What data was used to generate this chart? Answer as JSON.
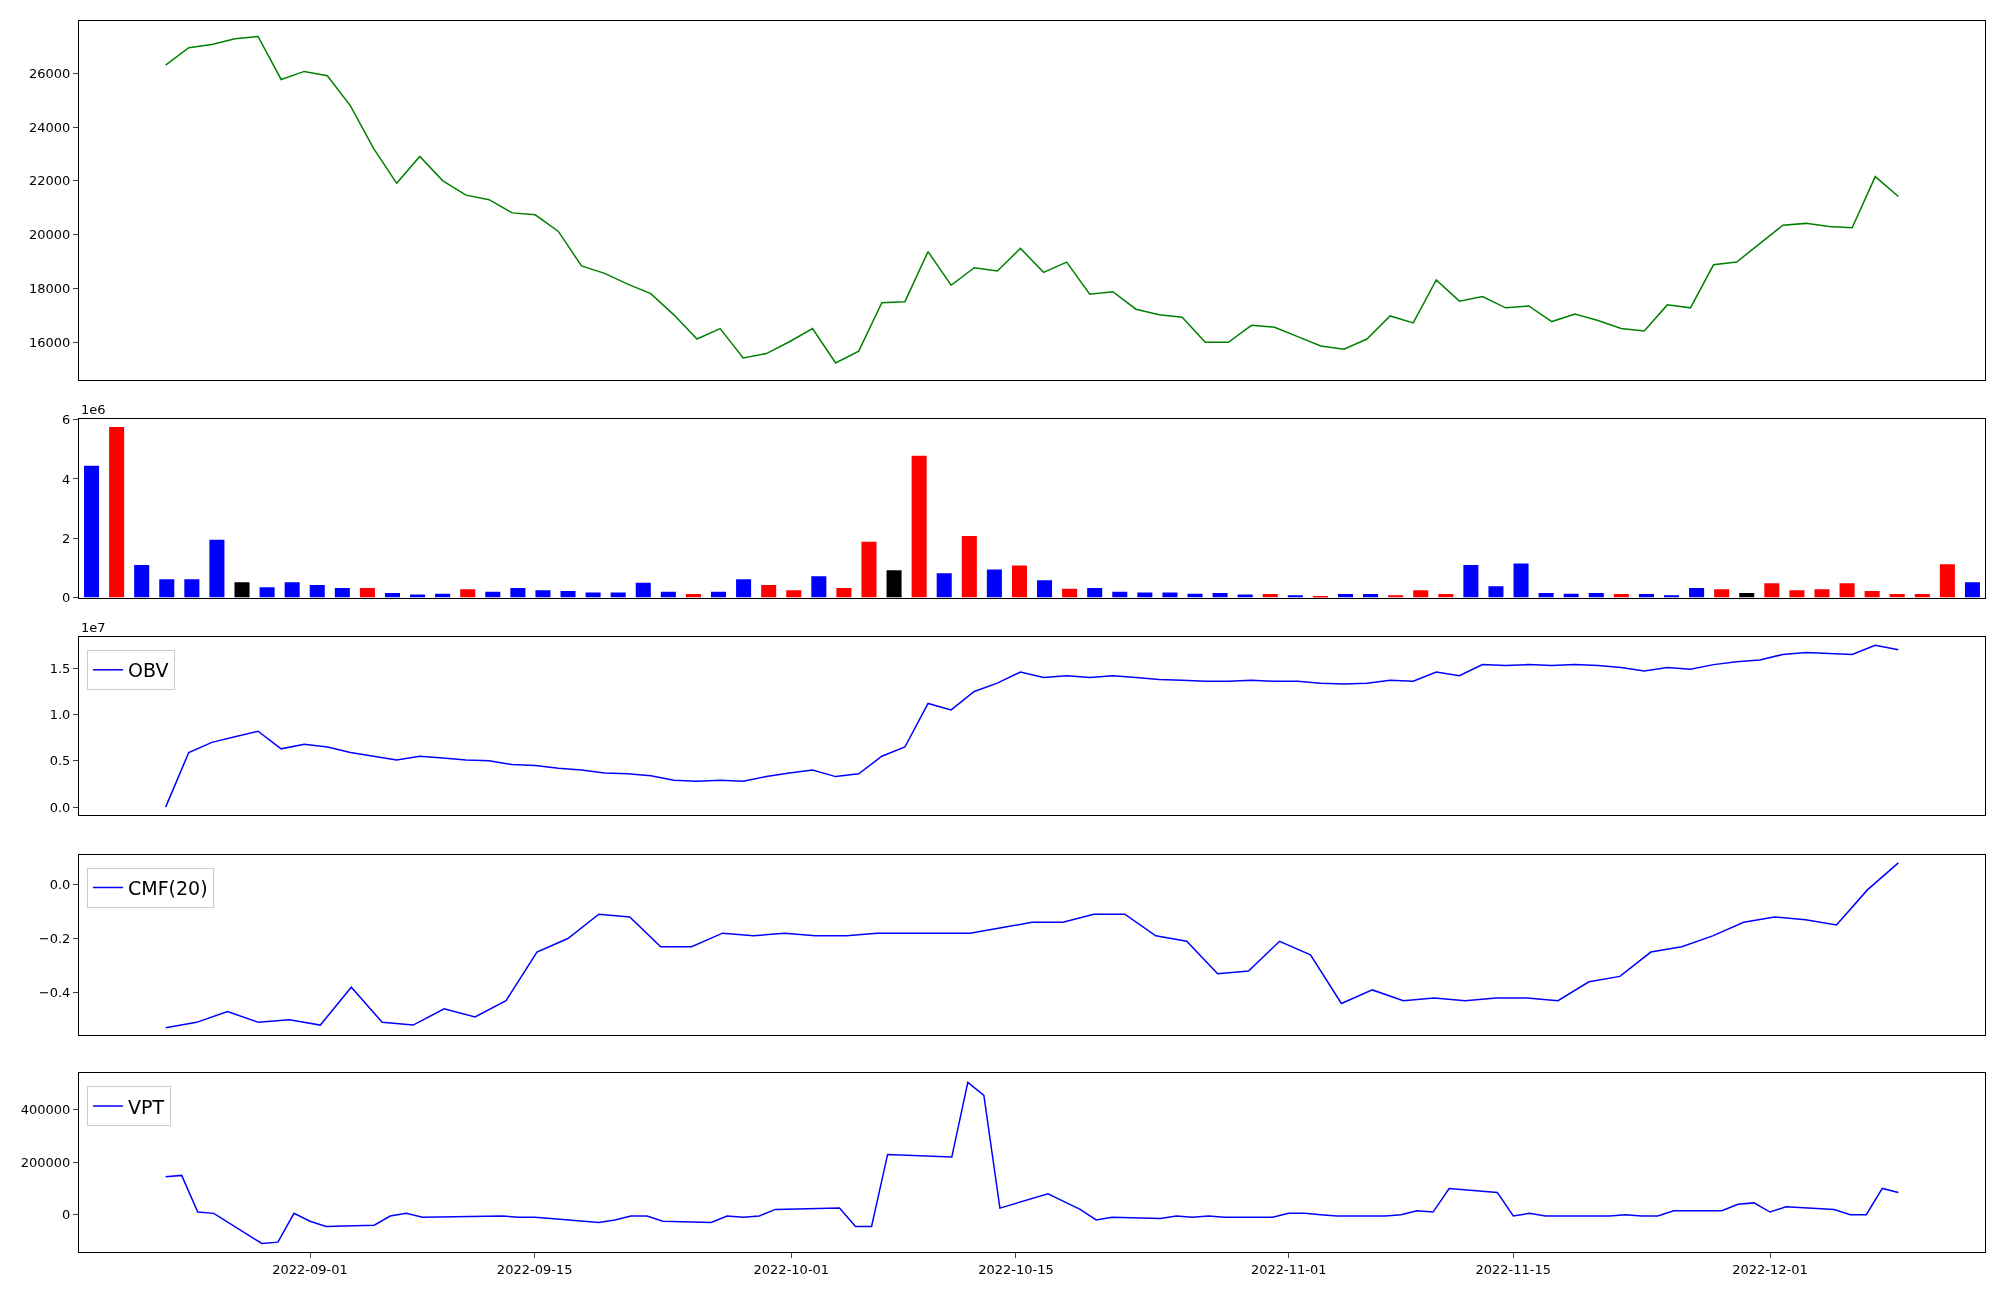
{
  "chart_data": [
    {
      "type": "line",
      "tick_labels": "y",
      "categories": [
        null,
        null,
        null,
        null,
        null,
        null,
        null,
        null,
        null,
        null,
        null,
        null,
        null,
        null,
        null,
        null,
        null,
        null,
        null,
        null,
        null,
        null,
        null,
        null,
        null,
        null,
        null,
        null,
        null,
        null,
        null,
        null,
        null,
        null,
        null,
        null,
        null,
        null,
        null,
        null,
        null,
        null,
        null,
        null,
        null,
        null,
        null,
        null,
        null,
        null,
        null,
        null,
        null,
        null,
        null,
        null,
        null,
        null,
        null,
        null,
        null,
        null,
        null,
        null,
        null,
        null,
        null,
        null,
        null,
        null,
        null,
        null,
        null,
        null,
        null,
        null
      ],
      "series": [
        {
          "color": "#008000",
          "values": [
            26300,
            26950,
            27070,
            27280,
            27370,
            25770,
            26070,
            25910,
            24790,
            23210,
            21910,
            22910,
            22000,
            21470,
            21300,
            20810,
            20740,
            20120,
            18840,
            18560,
            18160,
            17810,
            17020,
            16120,
            16510,
            15420,
            15580,
            16020,
            16510,
            15230,
            15670,
            17470,
            17510,
            19370,
            18120,
            18770,
            18650,
            19490,
            18600,
            18980,
            17790,
            17880,
            17230,
            17020,
            16930,
            16000,
            16000,
            16630,
            16560,
            16210,
            15860,
            15740,
            16120,
            16980,
            16720,
            18320,
            17530,
            17700,
            17280,
            17350,
            16770,
            17050,
            16810,
            16510,
            16420,
            17390,
            17280,
            18880,
            18980,
            19670,
            20350,
            20420,
            20300,
            20260,
            22160,
            21420
          ]
        }
      ],
      "ylim": [
        14600,
        27950
      ],
      "yticks": [
        16000,
        18000,
        20000,
        22000,
        24000,
        26000
      ]
    },
    {
      "type": "bar",
      "tick_labels": "y",
      "categories": [
        null,
        null,
        null,
        null,
        null,
        null,
        null,
        null,
        null,
        null,
        null,
        null,
        null,
        null,
        null,
        null,
        null,
        null,
        null,
        null,
        null,
        null,
        null,
        null,
        null,
        null,
        null,
        null,
        null,
        null,
        null,
        null,
        null,
        null,
        null,
        null,
        null,
        null,
        null,
        null,
        null,
        null,
        null,
        null,
        null,
        null,
        null,
        null,
        null,
        null,
        null,
        null,
        null,
        null,
        null,
        null,
        null,
        null,
        null,
        null,
        null,
        null,
        null,
        null,
        null,
        null,
        null,
        null,
        null,
        null,
        null,
        null,
        null,
        null,
        null,
        null
      ],
      "values": [
        4.45,
        5.75,
        1.1,
        0.62,
        0.62,
        1.95,
        0.52,
        0.35,
        0.52,
        0.42,
        0.32,
        0.32,
        0.15,
        0.1,
        0.13,
        0.28,
        0.2,
        0.32,
        0.25,
        0.22,
        0.17,
        0.17,
        0.5,
        0.2,
        0.12,
        0.2,
        0.62,
        0.42,
        0.25,
        0.72,
        0.32,
        1.88,
        0.92,
        4.78,
        0.82,
        2.08,
        0.95,
        1.08,
        0.58,
        0.3,
        0.32,
        0.2,
        0.17,
        0.17,
        0.13,
        0.15,
        0.1,
        0.12,
        0.08,
        0.05,
        0.12,
        0.12,
        0.08,
        0.25,
        0.12,
        1.1,
        0.38,
        1.15,
        0.15,
        0.13,
        0.15,
        0.12,
        0.12,
        0.08,
        0.32,
        0.28,
        0.15,
        0.48,
        0.25,
        0.28,
        0.48,
        0.22,
        0.12,
        0.12,
        1.12,
        0.52
      ],
      "colors": [
        "#0000ff",
        "#ff0000",
        "#0000ff",
        "#0000ff",
        "#0000ff",
        "#0000ff",
        "#000000",
        "#0000ff",
        "#0000ff",
        "#0000ff",
        "#0000ff",
        "#ff0000",
        "#0000ff",
        "#0000ff",
        "#0000ff",
        "#ff0000",
        "#0000ff",
        "#0000ff",
        "#0000ff",
        "#0000ff",
        "#0000ff",
        "#0000ff",
        "#0000ff",
        "#0000ff",
        "#ff0000",
        "#0000ff",
        "#0000ff",
        "#ff0000",
        "#ff0000",
        "#0000ff",
        "#ff0000",
        "#ff0000",
        "#000000",
        "#ff0000",
        "#0000ff",
        "#ff0000",
        "#0000ff",
        "#ff0000",
        "#0000ff",
        "#ff0000",
        "#0000ff",
        "#0000ff",
        "#0000ff",
        "#0000ff",
        "#0000ff",
        "#0000ff",
        "#0000ff",
        "#ff0000",
        "#0000ff",
        "#ff0000",
        "#0000ff",
        "#0000ff",
        "#ff0000",
        "#ff0000",
        "#ff0000",
        "#0000ff",
        "#0000ff",
        "#0000ff",
        "#0000ff",
        "#0000ff",
        "#0000ff",
        "#ff0000",
        "#0000ff",
        "#0000ff",
        "#0000ff",
        "#ff0000",
        "#000000",
        "#ff0000",
        "#ff0000",
        "#ff0000",
        "#ff0000",
        "#ff0000",
        "#ff0000",
        "#ff0000",
        "#ff0000",
        "#0000ff"
      ],
      "ylim": [
        0,
        6.04
      ],
      "yticks": [
        0,
        2,
        4,
        6
      ],
      "annotations": [
        "1e6"
      ]
    },
    {
      "type": "line",
      "tick_labels": "y",
      "legend": "top left",
      "categories": [
        null,
        null,
        null,
        null,
        null,
        null,
        null,
        null,
        null,
        null,
        null,
        null,
        null,
        null,
        null,
        null,
        null,
        null,
        null,
        null,
        null,
        null,
        null,
        null,
        null,
        null,
        null,
        null,
        null,
        null,
        null,
        null,
        null,
        null,
        null,
        null,
        null,
        null,
        null,
        null,
        null,
        null,
        null,
        null,
        null,
        null,
        null,
        null,
        null,
        null,
        null,
        null,
        null,
        null,
        null,
        null,
        null,
        null,
        null,
        null,
        null,
        null,
        null,
        null,
        null,
        null,
        null,
        null,
        null,
        null,
        null,
        null,
        null,
        null,
        null,
        null
      ],
      "series": [
        {
          "name": "OBV",
          "color": "#0000ff",
          "values": [
            0,
            0.59,
            0.7,
            0.76,
            0.82,
            0.63,
            0.68,
            0.65,
            0.59,
            0.55,
            0.51,
            0.55,
            0.53,
            0.51,
            0.5,
            0.46,
            0.45,
            0.42,
            0.4,
            0.37,
            0.36,
            0.34,
            0.29,
            0.28,
            0.29,
            0.28,
            0.33,
            0.37,
            0.4,
            0.33,
            0.36,
            0.55,
            0.65,
            1.12,
            1.05,
            1.25,
            1.34,
            1.46,
            1.4,
            1.42,
            1.4,
            1.42,
            1.4,
            1.38,
            1.37,
            1.36,
            1.36,
            1.37,
            1.36,
            1.36,
            1.34,
            1.33,
            1.34,
            1.37,
            1.36,
            1.46,
            1.42,
            1.54,
            1.53,
            1.54,
            1.53,
            1.54,
            1.53,
            1.51,
            1.47,
            1.51,
            1.49,
            1.54,
            1.57,
            1.59,
            1.65,
            1.67,
            1.66,
            1.65,
            1.75,
            1.7
          ]
        }
      ],
      "ylim": [
        -0.087,
        1.837
      ],
      "yticks": [
        {
          "value": 0,
          "label": "0.0"
        },
        0.5,
        {
          "value": 1,
          "label": "1.0"
        },
        1.5
      ],
      "annotations": [
        "1e7"
      ]
    },
    {
      "type": "line",
      "tick_labels": "y",
      "legend": "top left",
      "categories": [
        null,
        null,
        null,
        null,
        null,
        null,
        null,
        null,
        null,
        null,
        null,
        null,
        null,
        null,
        null,
        null,
        null,
        null,
        null,
        null,
        null,
        null,
        null,
        null,
        null,
        null,
        null,
        null,
        null,
        null,
        null,
        null,
        null,
        null,
        null,
        null,
        null,
        null,
        null,
        null,
        null,
        null,
        null,
        null,
        null,
        null,
        null,
        null,
        null,
        null,
        null,
        null,
        null,
        null,
        null,
        null,
        null
      ],
      "series": [
        {
          "name": "CMF(20)",
          "color": "#0000ff",
          "values": [
            -0.53,
            -0.51,
            -0.47,
            -0.51,
            -0.5,
            -0.52,
            -0.38,
            -0.51,
            -0.52,
            -0.46,
            -0.49,
            -0.43,
            -0.25,
            -0.2,
            -0.11,
            -0.12,
            -0.23,
            -0.23,
            -0.18,
            -0.19,
            -0.18,
            -0.19,
            -0.19,
            -0.18,
            -0.18,
            -0.18,
            -0.18,
            -0.16,
            -0.14,
            -0.14,
            -0.11,
            -0.11,
            -0.19,
            -0.21,
            -0.33,
            -0.32,
            -0.21,
            -0.26,
            -0.44,
            -0.39,
            -0.43,
            -0.42,
            -0.43,
            -0.42,
            -0.42,
            -0.43,
            -0.36,
            -0.34,
            -0.25,
            -0.23,
            -0.19,
            -0.14,
            -0.12,
            -0.13,
            -0.15,
            -0.02,
            0.08
          ]
        }
      ],
      "ylim": [
        -0.556,
        0.11
      ],
      "yticks": [
        {
          "value": -0.4,
          "label": "−0.4"
        },
        {
          "value": -0.2,
          "label": "−0.2"
        },
        {
          "value": 0,
          "label": "0.0"
        }
      ]
    },
    {
      "type": "line",
      "legend": "top left",
      "x": [
        "2022-08-23",
        "2022-08-24",
        "2022-08-25",
        "2022-08-26",
        "2022-08-29",
        "2022-08-30",
        "2022-08-31",
        "2022-09-01",
        "2022-09-02",
        "2022-09-05",
        "2022-09-06",
        "2022-09-07",
        "2022-09-08",
        "2022-09-13",
        "2022-09-14",
        "2022-09-15",
        "2022-09-16",
        "2022-09-19",
        "2022-09-20",
        "2022-09-21",
        "2022-09-22",
        "2022-09-23",
        "2022-09-26",
        "2022-09-27",
        "2022-09-28",
        "2022-09-29",
        "2022-09-30",
        "2022-10-04",
        "2022-10-05",
        "2022-10-06",
        "2022-10-07",
        "2022-10-11",
        "2022-10-12",
        "2022-10-13",
        "2022-10-14",
        "2022-10-17",
        "2022-10-18",
        "2022-10-19",
        "2022-10-20",
        "2022-10-21",
        "2022-10-24",
        "2022-10-25",
        "2022-10-26",
        "2022-10-27",
        "2022-10-28",
        "2022-10-31",
        "2022-11-01",
        "2022-11-02",
        "2022-11-03",
        "2022-11-04",
        "2022-11-07",
        "2022-11-08",
        "2022-11-09",
        "2022-11-10",
        "2022-11-11",
        "2022-11-14",
        "2022-11-15",
        "2022-11-16",
        "2022-11-17",
        "2022-11-18",
        "2022-11-21",
        "2022-11-22",
        "2022-11-23",
        "2022-11-24",
        "2022-11-25",
        "2022-11-28",
        "2022-11-29",
        "2022-11-30",
        "2022-12-01",
        "2022-12-02",
        "2022-12-05",
        "2022-12-06",
        "2022-12-07",
        "2022-12-08",
        "2022-12-09"
      ],
      "series": [
        {
          "name": "VPT",
          "color": "#0000ff",
          "values": [
            145000,
            150000,
            10000,
            5000,
            -110000,
            -105000,
            5000,
            -25000,
            -45000,
            -40000,
            -5000,
            5000,
            -10000,
            -5000,
            -10000,
            -10000,
            -15000,
            -30000,
            -20000,
            -5000,
            -5000,
            -25000,
            -30000,
            -5000,
            -10000,
            -5000,
            20000,
            25000,
            -45000,
            -45000,
            230000,
            220000,
            505000,
            455000,
            25000,
            80000,
            50000,
            20000,
            -20000,
            -10000,
            -15000,
            -5000,
            -10000,
            -5000,
            -10000,
            -10000,
            5000,
            5000,
            0,
            -5000,
            -5000,
            0,
            15000,
            10000,
            100000,
            85000,
            -5000,
            5000,
            -5000,
            -5000,
            -5000,
            0,
            -5000,
            -5000,
            15000,
            15000,
            40000,
            45000,
            10000,
            30000,
            20000,
            0,
            0,
            100000,
            85000
          ]
        }
      ],
      "xlim": [
        "2022-08-17T14:24",
        "2022-12-14T09:36"
      ],
      "xticks": [
        "2022-09-01",
        "2022-09-15",
        "2022-10-01",
        "2022-10-15",
        "2022-11-01",
        "2022-11-15",
        "2022-12-01"
      ],
      "ylim": [
        -144200,
        539500
      ],
      "yticks": [
        0,
        200000,
        400000
      ]
    }
  ]
}
